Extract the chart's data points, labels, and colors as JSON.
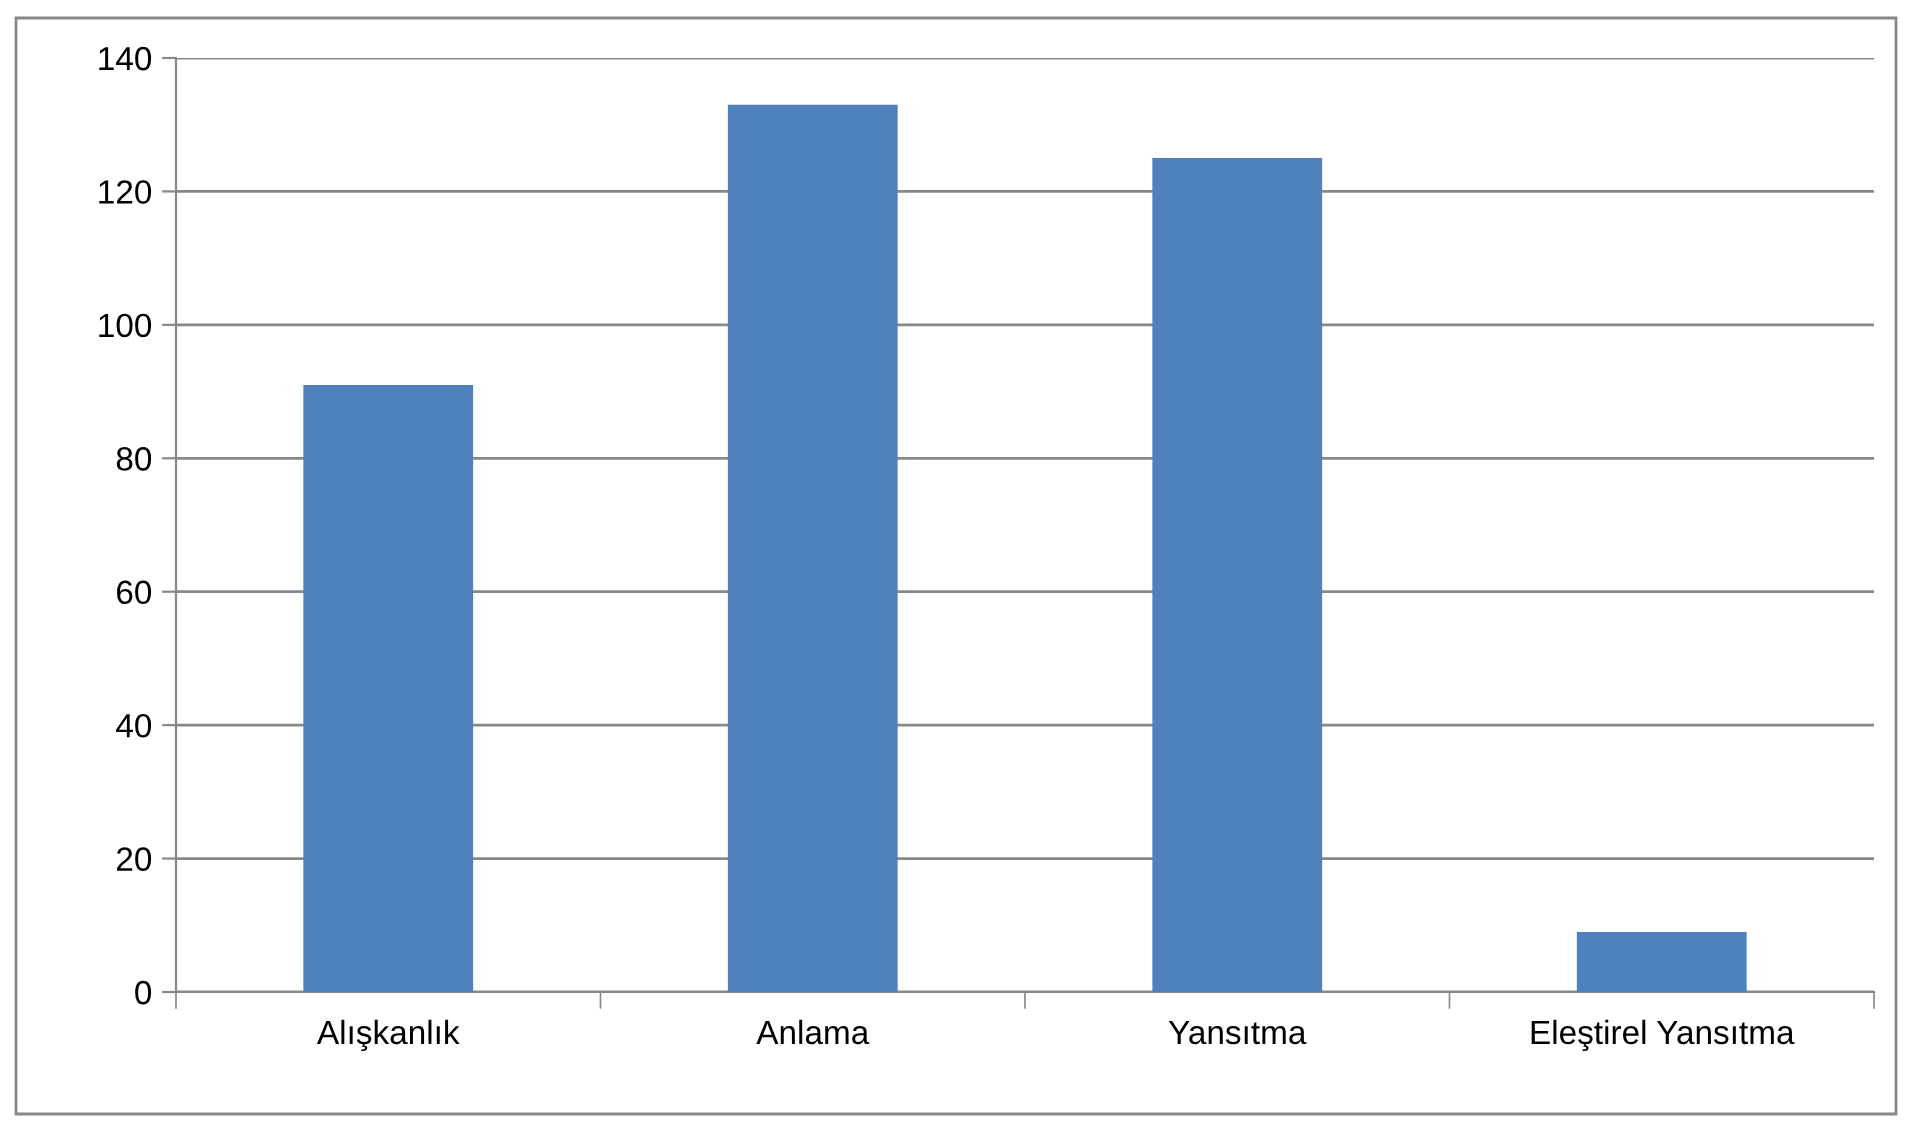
{
  "chart_data": {
    "type": "bar",
    "categories": [
      "Alışkanlık",
      "Anlama",
      "Yansıtma",
      "Eleştirel Yansıtma"
    ],
    "values": [
      91,
      133,
      125,
      9
    ],
    "color": "#4f81bd",
    "ylim": [
      0,
      140
    ],
    "yticks": [
      0,
      20,
      40,
      60,
      80,
      100,
      120,
      140
    ],
    "grid": "y",
    "legend": false
  }
}
